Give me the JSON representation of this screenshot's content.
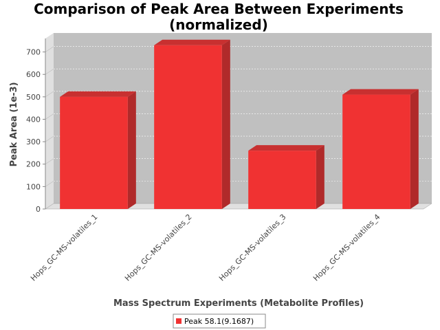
{
  "chart_data": {
    "type": "bar",
    "title_lines": [
      "Comparison of Peak Area Between Experiments",
      "(normalized)"
    ],
    "xlabel": "Mass Spectrum Experiments (Metabolite Profiles)",
    "ylabel": "Peak Area (1e-3)",
    "categories": [
      "Hops_GC-MS-volatiles_1",
      "Hops_GC-MS-volatiles_2",
      "Hops_GC-MS-volatiles_3",
      "Hops_GC-MS-volatiles_4"
    ],
    "series": [
      {
        "name": "Peak 58.1(9.1687)",
        "values": [
          500,
          730,
          260,
          510
        ]
      }
    ],
    "ylim": [
      0,
      760
    ],
    "yticks": [
      0,
      100,
      200,
      300,
      400,
      500,
      600,
      700
    ],
    "grid": true,
    "legend_position": "bottom-center",
    "colors": {
      "bar_front": "#f03232",
      "bar_top": "#c83030",
      "bar_side": "#b02a2a",
      "plot_bg": "#c0c0c0",
      "plot_wall": "#e0e0e0",
      "grid": "#ffffff"
    }
  }
}
